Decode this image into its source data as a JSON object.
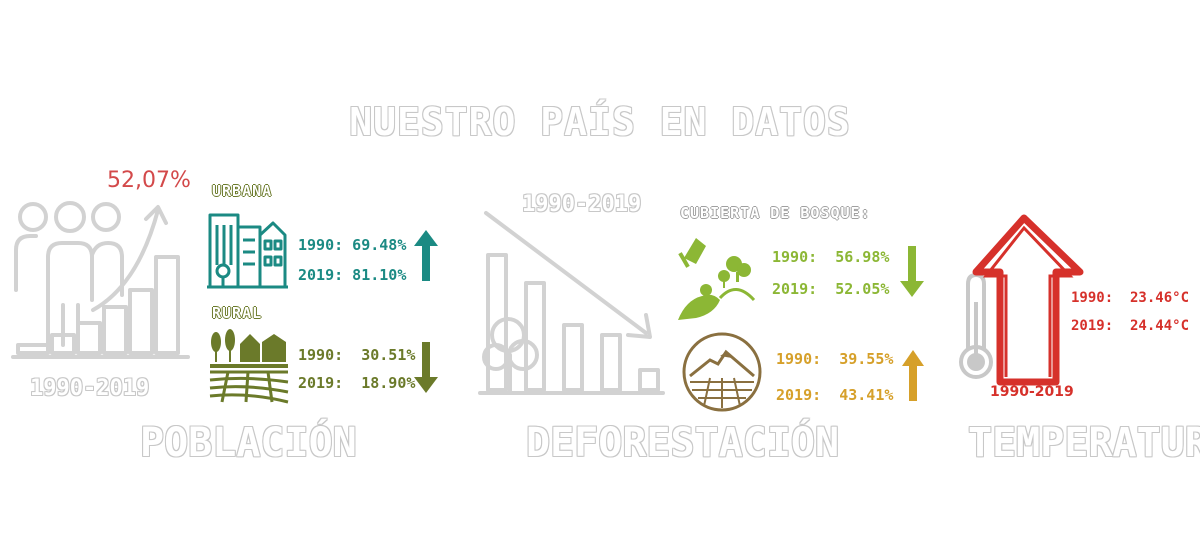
{
  "title": "NUESTRO PAÍS EN DATOS",
  "poblacion": {
    "label": "POBLACIÓN",
    "growth": "52,07%",
    "period": "1990-2019",
    "urbana": {
      "label": "URBANA",
      "y1990": "1990: 69.48%",
      "y2019": "2019: 81.10%",
      "trend": "up"
    },
    "rural": {
      "label": "RURAL",
      "y1990": "1990:  30.51%",
      "y2019": "2019:  18.90%",
      "trend": "down"
    }
  },
  "deforestacion": {
    "label": "DEFORESTACIÓN",
    "period": "1990-2019",
    "bosque": {
      "label": "CUBIERTA DE BOSQUE:",
      "y1990": "1990:  56.98%",
      "y2019": "2019:  52.05%",
      "trend": "down"
    },
    "agricola": {
      "y1990": "1990:  39.55%",
      "y2019": "2019:  43.41%",
      "trend": "up"
    }
  },
  "temperatura": {
    "label": "TEMPERATURA",
    "period": "1990-2019",
    "y1990": "1990:  23.46°C",
    "y2019": "2019:  24.44°C",
    "trend": "up"
  },
  "colors": {
    "teal": "#1b8a83",
    "olive": "#6b7a2a",
    "green": "#8cb735",
    "amber": "#d6a02a",
    "red": "#d6312b",
    "growth": "#d3494a",
    "outline": "#c8c8c8"
  }
}
